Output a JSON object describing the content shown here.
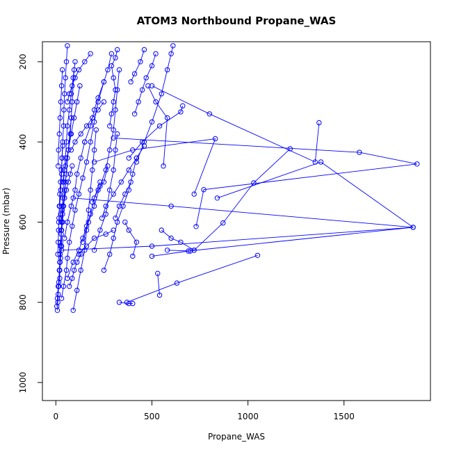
{
  "chart_data": {
    "type": "scatter",
    "title": "ATOM3 Northbound Propane_WAS",
    "xlabel": "Propane_WAS",
    "ylabel": "Pressure (mbar)",
    "xlim": [
      -70,
      1950
    ],
    "ylim": [
      1045,
      150
    ],
    "y_reversed": true,
    "grid": false,
    "x_ticks": [
      0,
      500,
      1000,
      1500
    ],
    "y_ticks": [
      200,
      400,
      600,
      800,
      1000
    ],
    "marker": "open-circle",
    "connected": true,
    "color": "#0000ff",
    "series": [
      {
        "x": [
          8,
          10,
          12,
          15,
          18,
          20,
          22,
          25,
          28,
          30,
          33,
          36,
          40,
          45,
          50,
          55,
          60,
          70,
          80,
          90,
          100
        ],
        "y": [
          820,
          800,
          780,
          750,
          720,
          700,
          680,
          650,
          620,
          600,
          570,
          540,
          500,
          470,
          440,
          400,
          360,
          320,
          280,
          240,
          200
        ]
      },
      {
        "x": [
          5,
          8,
          12,
          20,
          25,
          30,
          28,
          35,
          40,
          45,
          55,
          60,
          75,
          85,
          95
        ],
        "y": [
          810,
          790,
          760,
          720,
          690,
          660,
          630,
          600,
          560,
          520,
          480,
          440,
          380,
          300,
          220
        ]
      },
      {
        "x": [
          30,
          40,
          55,
          60,
          70,
          85,
          100,
          120,
          140,
          160,
          180,
          200,
          220,
          250
        ],
        "y": [
          790,
          760,
          720,
          690,
          650,
          610,
          570,
          530,
          490,
          450,
          400,
          350,
          300,
          250
        ]
      },
      {
        "x": [
          15,
          20,
          22,
          25,
          30,
          35,
          45,
          50,
          65,
          80
        ],
        "y": [
          760,
          740,
          700,
          660,
          620,
          580,
          540,
          500,
          420,
          340
        ]
      },
      {
        "x": [
          10,
          12,
          14,
          16,
          18,
          20,
          24,
          28,
          32,
          36
        ],
        "y": [
          680,
          650,
          620,
          590,
          560,
          530,
          500,
          470,
          440,
          410
        ]
      },
      {
        "x": [
          20,
          25,
          30,
          32,
          35,
          40,
          42,
          45,
          50,
          55,
          60
        ],
        "y": [
          560,
          520,
          480,
          440,
          400,
          360,
          320,
          280,
          240,
          200,
          160
        ]
      },
      {
        "x": [
          90,
          110,
          130,
          150,
          160,
          170,
          180,
          190,
          200,
          210
        ],
        "y": [
          820,
          770,
          720,
          670,
          620,
          570,
          520,
          470,
          420,
          370
        ]
      },
      {
        "x": [
          330,
          380,
          400
        ],
        "y": [
          800,
          803,
          803
        ]
      },
      {
        "x": [
          370,
          630,
          1050
        ],
        "y": [
          800,
          752,
          683
        ]
      },
      {
        "x": [
          540,
          530
        ],
        "y": [
          782,
          728
        ]
      },
      {
        "x": [
          580,
          700,
          720,
          650,
          600,
          550
        ],
        "y": [
          670,
          672,
          670,
          650,
          640,
          620
        ]
      },
      {
        "x": [
          720,
          870,
          1030,
          1220
        ],
        "y": [
          670,
          602,
          502,
          417
        ]
      },
      {
        "x": [
          500,
          690,
          1860,
          600,
          90
        ],
        "y": [
          685,
          672,
          613,
          560,
          540
        ]
      },
      {
        "x": [
          840,
          1380,
          1860,
          500,
          30
        ],
        "y": [
          540,
          450,
          613,
          660,
          670
        ]
      },
      {
        "x": [
          730,
          770,
          1880,
          1580,
          300
        ],
        "y": [
          611,
          519,
          455,
          426,
          390
        ]
      },
      {
        "x": [
          720,
          830,
          400,
          200
        ],
        "y": [
          530,
          392,
          420,
          450
        ]
      },
      {
        "x": [
          1370,
          1350,
          800,
          500
        ],
        "y": [
          352,
          450,
          330,
          260
        ]
      },
      {
        "x": [
          660,
          650,
          540,
          450,
          380
        ],
        "y": [
          310,
          325,
          360,
          400,
          440
        ]
      },
      {
        "x": [
          560,
          580,
          520,
          480
        ],
        "y": [
          460,
          340,
          300,
          260
        ]
      },
      {
        "x": [
          420,
          460,
          500,
          550,
          580,
          600,
          610
        ],
        "y": [
          450,
          400,
          350,
          280,
          220,
          180,
          160
        ]
      },
      {
        "x": [
          250,
          280,
          300,
          320,
          350,
          380,
          400,
          420
        ],
        "y": [
          720,
          680,
          640,
          600,
          560,
          520,
          480,
          440
        ]
      },
      {
        "x": [
          200,
          230,
          260,
          280,
          300,
          310,
          320
        ],
        "y": [
          670,
          620,
          580,
          520,
          470,
          420,
          380
        ]
      },
      {
        "x": [
          140,
          170,
          200,
          230,
          260,
          280,
          300,
          310,
          320,
          330
        ],
        "y": [
          650,
          600,
          560,
          510,
          470,
          420,
          370,
          320,
          270,
          220
        ]
      },
      {
        "x": [
          280,
          290,
          300,
          310,
          300,
          290,
          310,
          320
        ],
        "y": [
          360,
          330,
          300,
          270,
          240,
          210,
          190,
          170
        ]
      },
      {
        "x": [
          150,
          180,
          200,
          220,
          250,
          270,
          290
        ],
        "y": [
          400,
          360,
          320,
          290,
          250,
          220,
          180
        ]
      },
      {
        "x": [
          410,
          430,
          450,
          470,
          500,
          520
        ],
        "y": [
          330,
          300,
          270,
          240,
          210,
          180
        ]
      },
      {
        "x": [
          390,
          410,
          440,
          460
        ],
        "y": [
          250,
          230,
          200,
          170
        ]
      },
      {
        "x": [
          310,
          330,
          360,
          390
        ],
        "y": [
          590,
          560,
          530,
          500
        ]
      },
      {
        "x": [
          240,
          260,
          300,
          340,
          380,
          420,
          460
        ],
        "y": [
          590,
          560,
          530,
          500,
          470,
          440,
          410
        ]
      },
      {
        "x": [
          120,
          160,
          200,
          260,
          300
        ],
        "y": [
          680,
          660,
          640,
          630,
          620
        ]
      },
      {
        "x": [
          400,
          420,
          380,
          360
        ],
        "y": [
          685,
          650,
          620,
          600
        ]
      },
      {
        "x": [
          190,
          220,
          250,
          270
        ],
        "y": [
          550,
          520,
          500,
          460
        ]
      },
      {
        "x": [
          60,
          90,
          120,
          140,
          160,
          180,
          200,
          230
        ],
        "y": [
          740,
          700,
          670,
          640,
          610,
          580,
          540,
          500
        ]
      },
      {
        "x": [
          45,
          60,
          80,
          100,
          110,
          130,
          150
        ],
        "y": [
          640,
          600,
          560,
          520,
          480,
          440,
          400
        ]
      },
      {
        "x": [
          35,
          50,
          65,
          80,
          95,
          110,
          125
        ],
        "y": [
          500,
          460,
          420,
          380,
          340,
          300,
          260
        ]
      },
      {
        "x": [
          12,
          14,
          18,
          22,
          26,
          30,
          34
        ],
        "y": [
          460,
          420,
          380,
          340,
          300,
          260,
          220
        ]
      },
      {
        "x": [
          60,
          70,
          85,
          100,
          120,
          150,
          180
        ],
        "y": [
          300,
          280,
          260,
          240,
          220,
          200,
          180
        ]
      },
      {
        "x": [
          80,
          100,
          130,
          160,
          190,
          220,
          250
        ],
        "y": [
          420,
          400,
          380,
          360,
          340,
          320,
          300
        ]
      },
      {
        "x": [
          15,
          25,
          35,
          45,
          55,
          65,
          75,
          85
        ],
        "y": [
          600,
          580,
          560,
          540,
          520,
          500,
          480,
          460
        ]
      },
      {
        "x": [
          70,
          85,
          95,
          110,
          130
        ],
        "y": [
          760,
          740,
          720,
          700,
          680
        ]
      }
    ]
  }
}
